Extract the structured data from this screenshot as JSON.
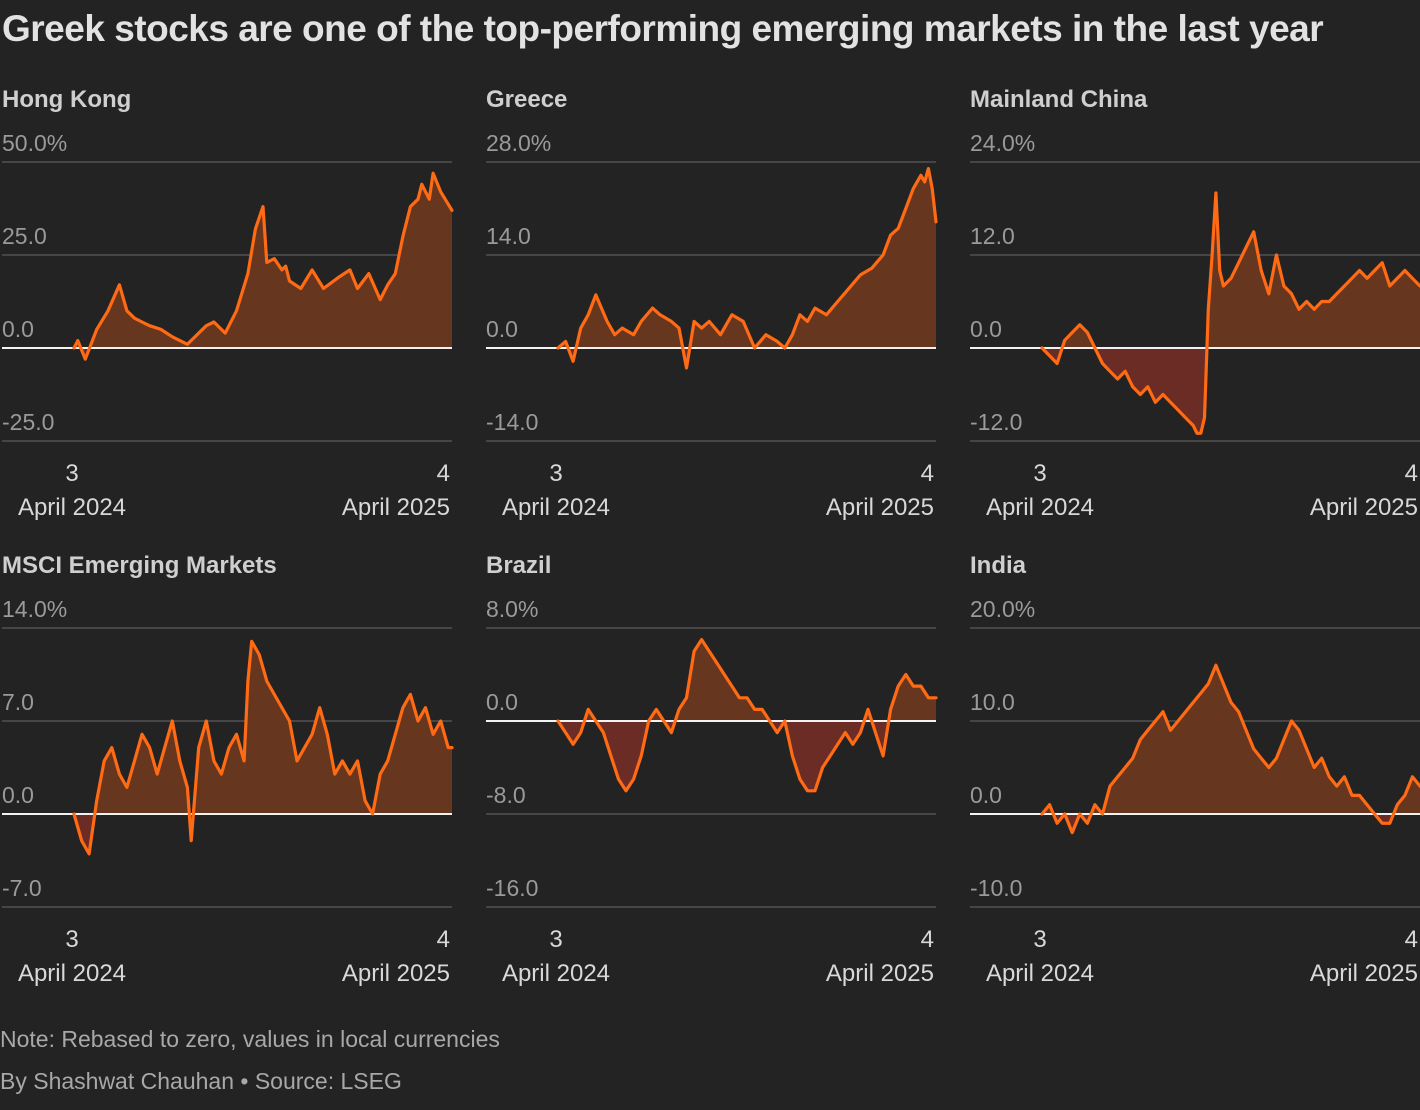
{
  "headline": "Greek stocks are one of the top-performing emerging markets in the last year",
  "footer": {
    "note": "Note: Rebased to zero, values in local currencies",
    "credit": "By Shashwat Chauhan • Source: LSEG"
  },
  "colors": {
    "line": "#ff6a14",
    "area_positive": "#66361f",
    "area_negative": "#6a2c25",
    "background": "#232323"
  },
  "chart_data": [
    {
      "type": "area",
      "title": "Hong Kong",
      "ylabel": "",
      "ylim": [
        -25,
        50
      ],
      "yticks": [
        "50.0%",
        "25.0",
        "0.0",
        "-25.0"
      ],
      "ytick_values": [
        50,
        25,
        0,
        -25
      ],
      "x_labels": [
        {
          "day": "3",
          "month": "April 2024"
        },
        {
          "day": "4",
          "month": "April 2025"
        }
      ],
      "x": [
        0,
        0.01,
        0.03,
        0.06,
        0.09,
        0.12,
        0.14,
        0.16,
        0.18,
        0.2,
        0.23,
        0.26,
        0.3,
        0.33,
        0.35,
        0.37,
        0.4,
        0.43,
        0.46,
        0.48,
        0.5,
        0.51,
        0.53,
        0.55,
        0.56,
        0.57,
        0.6,
        0.63,
        0.66,
        0.7,
        0.73,
        0.75,
        0.78,
        0.81,
        0.83,
        0.85,
        0.87,
        0.89,
        0.91,
        0.92,
        0.94,
        0.95,
        0.97,
        1.0
      ],
      "values": [
        0,
        2,
        -3,
        5,
        10,
        17,
        10,
        8,
        7,
        6,
        5,
        3,
        1,
        4,
        6,
        7,
        4,
        10,
        20,
        32,
        38,
        23,
        24,
        21,
        22,
        18,
        16,
        21,
        16,
        19,
        21,
        16,
        20,
        13,
        17,
        20,
        30,
        38,
        40,
        44,
        40,
        47,
        42,
        37
      ]
    },
    {
      "type": "area",
      "title": "Greece",
      "ylabel": "",
      "ylim": [
        -14,
        28
      ],
      "yticks": [
        "28.0%",
        "14.0",
        "0.0",
        "-14.0"
      ],
      "ytick_values": [
        28,
        14,
        0,
        -14
      ],
      "x_labels": [
        {
          "day": "3",
          "month": "April 2024"
        },
        {
          "day": "4",
          "month": "April 2025"
        }
      ],
      "x": [
        0,
        0.02,
        0.04,
        0.06,
        0.08,
        0.1,
        0.13,
        0.15,
        0.17,
        0.2,
        0.22,
        0.25,
        0.27,
        0.3,
        0.32,
        0.34,
        0.36,
        0.38,
        0.4,
        0.43,
        0.46,
        0.49,
        0.52,
        0.55,
        0.58,
        0.6,
        0.62,
        0.64,
        0.66,
        0.68,
        0.71,
        0.74,
        0.77,
        0.8,
        0.83,
        0.86,
        0.88,
        0.9,
        0.92,
        0.94,
        0.96,
        0.97,
        0.98,
        0.99,
        1.0
      ],
      "values": [
        0,
        1,
        -2,
        3,
        5,
        8,
        4,
        2,
        3,
        2,
        4,
        6,
        5,
        4,
        3,
        -3,
        4,
        3,
        4,
        2,
        5,
        4,
        0,
        2,
        1,
        0,
        2,
        5,
        4,
        6,
        5,
        7,
        9,
        11,
        12,
        14,
        17,
        18,
        21,
        24,
        26,
        25,
        27,
        24,
        19
      ]
    },
    {
      "type": "area",
      "title": "Mainland China",
      "ylabel": "",
      "ylim": [
        -12,
        24
      ],
      "yticks": [
        "24.0%",
        "12.0",
        "0.0",
        "-12.0"
      ],
      "ytick_values": [
        24,
        12,
        0,
        -12
      ],
      "x_labels": [
        {
          "day": "3",
          "month": "April 2024"
        },
        {
          "day": "4",
          "month": "April 2025"
        }
      ],
      "x": [
        0,
        0.02,
        0.04,
        0.06,
        0.08,
        0.1,
        0.12,
        0.14,
        0.16,
        0.18,
        0.2,
        0.22,
        0.24,
        0.26,
        0.28,
        0.3,
        0.32,
        0.34,
        0.36,
        0.38,
        0.4,
        0.41,
        0.42,
        0.43,
        0.44,
        0.45,
        0.46,
        0.47,
        0.48,
        0.5,
        0.52,
        0.54,
        0.56,
        0.58,
        0.6,
        0.62,
        0.64,
        0.66,
        0.68,
        0.7,
        0.72,
        0.74,
        0.76,
        0.78,
        0.8,
        0.82,
        0.84,
        0.86,
        0.88,
        0.9,
        0.92,
        0.94,
        0.96,
        0.98,
        1.0
      ],
      "values": [
        0,
        -1,
        -2,
        1,
        2,
        3,
        2,
        0,
        -2,
        -3,
        -4,
        -3,
        -5,
        -6,
        -5,
        -7,
        -6,
        -7,
        -8,
        -9,
        -10,
        -11,
        -11,
        -9,
        5,
        12,
        20,
        10,
        8,
        9,
        11,
        13,
        15,
        10,
        7,
        12,
        8,
        7,
        5,
        6,
        5,
        6,
        6,
        7,
        8,
        9,
        10,
        9,
        10,
        11,
        8,
        9,
        10,
        9,
        8
      ]
    },
    {
      "type": "area",
      "title": "MSCI Emerging Markets",
      "ylabel": "",
      "ylim": [
        -7,
        14
      ],
      "yticks": [
        "14.0%",
        "7.0",
        "0.0",
        "-7.0"
      ],
      "ytick_values": [
        14,
        7,
        0,
        -7
      ],
      "x_labels": [
        {
          "day": "3",
          "month": "April 2024"
        },
        {
          "day": "4",
          "month": "April 2025"
        }
      ],
      "x": [
        0,
        0.02,
        0.04,
        0.06,
        0.08,
        0.1,
        0.12,
        0.14,
        0.16,
        0.18,
        0.2,
        0.22,
        0.24,
        0.26,
        0.28,
        0.3,
        0.31,
        0.33,
        0.35,
        0.37,
        0.39,
        0.41,
        0.43,
        0.45,
        0.46,
        0.47,
        0.49,
        0.51,
        0.53,
        0.55,
        0.57,
        0.59,
        0.61,
        0.63,
        0.65,
        0.67,
        0.69,
        0.71,
        0.73,
        0.75,
        0.77,
        0.79,
        0.81,
        0.83,
        0.85,
        0.87,
        0.89,
        0.91,
        0.93,
        0.95,
        0.97,
        0.99,
        1.0
      ],
      "values": [
        0,
        -2,
        -3,
        1,
        4,
        5,
        3,
        2,
        4,
        6,
        5,
        3,
        5,
        7,
        4,
        2,
        -2,
        5,
        7,
        4,
        3,
        5,
        6,
        4,
        10,
        13,
        12,
        10,
        9,
        8,
        7,
        4,
        5,
        6,
        8,
        6,
        3,
        4,
        3,
        4,
        1,
        0,
        3,
        4,
        6,
        8,
        9,
        7,
        8,
        6,
        7,
        5,
        5
      ]
    },
    {
      "type": "area",
      "title": "Brazil",
      "ylabel": "",
      "ylim": [
        -16,
        8
      ],
      "yticks": [
        "8.0%",
        "0.0",
        "-8.0",
        "-16.0"
      ],
      "ytick_values": [
        8,
        0,
        -8,
        -16
      ],
      "x_labels": [
        {
          "day": "3",
          "month": "April 2024"
        },
        {
          "day": "4",
          "month": "April 2025"
        }
      ],
      "x": [
        0,
        0.02,
        0.04,
        0.06,
        0.08,
        0.1,
        0.12,
        0.14,
        0.16,
        0.18,
        0.2,
        0.22,
        0.24,
        0.26,
        0.28,
        0.3,
        0.32,
        0.34,
        0.36,
        0.38,
        0.4,
        0.42,
        0.44,
        0.46,
        0.48,
        0.5,
        0.52,
        0.54,
        0.56,
        0.58,
        0.6,
        0.62,
        0.64,
        0.66,
        0.68,
        0.7,
        0.72,
        0.74,
        0.76,
        0.78,
        0.8,
        0.82,
        0.84,
        0.86,
        0.88,
        0.9,
        0.92,
        0.94,
        0.96,
        0.98,
        1.0
      ],
      "values": [
        0,
        -1,
        -2,
        -1,
        1,
        0,
        -1,
        -3,
        -5,
        -6,
        -5,
        -3,
        0,
        1,
        0,
        -1,
        1,
        2,
        6,
        7,
        6,
        5,
        4,
        3,
        2,
        2,
        1,
        1,
        0,
        -1,
        0,
        -3,
        -5,
        -6,
        -6,
        -4,
        -3,
        -2,
        -1,
        -2,
        -1,
        1,
        -1,
        -3,
        1,
        3,
        4,
        3,
        3,
        2,
        2
      ]
    },
    {
      "type": "area",
      "title": "India",
      "ylabel": "",
      "ylim": [
        -10,
        20
      ],
      "yticks": [
        "20.0%",
        "10.0",
        "0.0",
        "-10.0"
      ],
      "ytick_values": [
        20,
        10,
        0,
        -10
      ],
      "x_labels": [
        {
          "day": "3",
          "month": "April 2024"
        },
        {
          "day": "4",
          "month": "April 2025"
        }
      ],
      "x": [
        0,
        0.02,
        0.04,
        0.06,
        0.08,
        0.1,
        0.12,
        0.14,
        0.16,
        0.18,
        0.2,
        0.22,
        0.24,
        0.26,
        0.28,
        0.3,
        0.32,
        0.34,
        0.36,
        0.38,
        0.4,
        0.42,
        0.44,
        0.46,
        0.48,
        0.5,
        0.52,
        0.54,
        0.56,
        0.58,
        0.6,
        0.62,
        0.64,
        0.66,
        0.68,
        0.7,
        0.72,
        0.74,
        0.76,
        0.78,
        0.8,
        0.82,
        0.84,
        0.86,
        0.88,
        0.9,
        0.92,
        0.94,
        0.96,
        0.98,
        1.0
      ],
      "values": [
        0,
        1,
        -1,
        0,
        -2,
        0,
        -1,
        1,
        0,
        3,
        4,
        5,
        6,
        8,
        9,
        10,
        11,
        9,
        10,
        11,
        12,
        13,
        14,
        16,
        14,
        12,
        11,
        9,
        7,
        6,
        5,
        6,
        8,
        10,
        9,
        7,
        5,
        6,
        4,
        3,
        4,
        2,
        2,
        1,
        0,
        -1,
        -1,
        1,
        2,
        4,
        3
      ]
    }
  ]
}
